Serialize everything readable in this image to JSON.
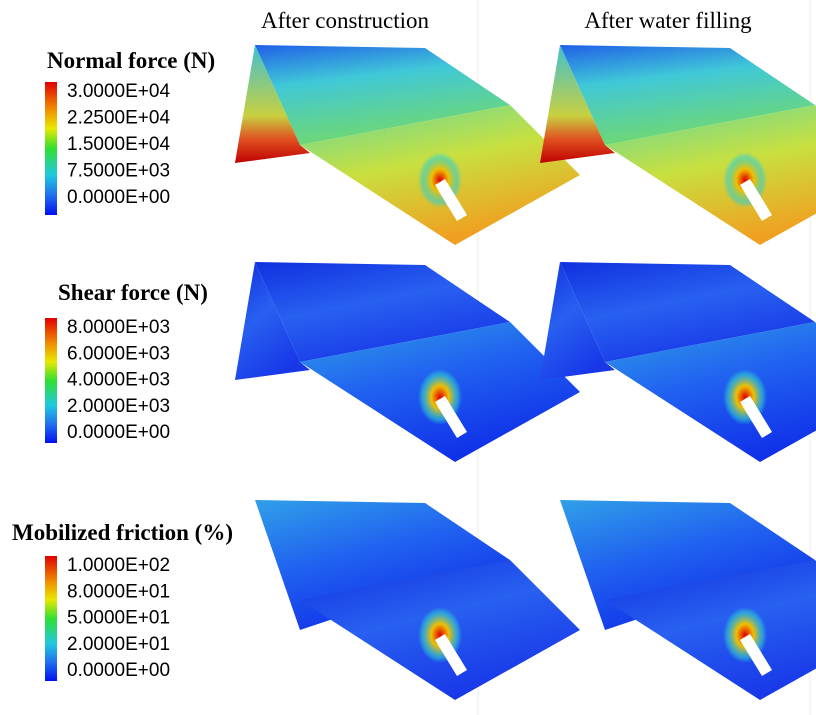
{
  "columns": [
    "After construction",
    "After water filling"
  ],
  "legends": [
    {
      "title": "Normal force (N)",
      "labels": [
        "3.0000E+04",
        "2.2500E+04",
        "1.5000E+04",
        "7.5000E+03",
        "0.0000E+00"
      ]
    },
    {
      "title": "Shear force (N)",
      "labels": [
        "8.0000E+03",
        "6.0000E+03",
        "4.0000E+03",
        "2.0000E+03",
        "0.0000E+00"
      ]
    },
    {
      "title": "Mobilized friction (%)",
      "labels": [
        "1.0000E+02",
        "8.0000E+01",
        "5.0000E+01",
        "2.0000E+01",
        "0.0000E+00"
      ]
    }
  ]
}
